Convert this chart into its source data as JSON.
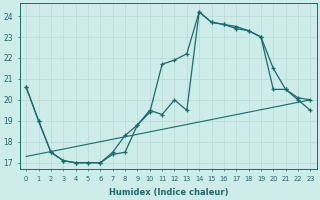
{
  "xlabel": "Humidex (Indice chaleur)",
  "bg_color": "#ceecea",
  "line_color": "#1a6b6b",
  "grid_color": "#b8dbd8",
  "xlim": [
    -0.5,
    23.5
  ],
  "ylim": [
    16.7,
    24.6
  ],
  "yticks": [
    17,
    18,
    19,
    20,
    21,
    22,
    23,
    24
  ],
  "xticks": [
    0,
    1,
    2,
    3,
    4,
    5,
    6,
    7,
    8,
    9,
    10,
    11,
    12,
    13,
    14,
    15,
    16,
    17,
    18,
    19,
    20,
    21,
    22,
    23
  ],
  "line1_x": [
    0,
    1,
    2,
    3,
    4,
    5,
    6,
    7,
    8,
    9,
    10,
    11,
    12,
    13,
    14,
    15,
    16,
    17,
    18,
    19,
    20,
    21,
    22,
    23
  ],
  "line1_y": [
    20.6,
    19.0,
    17.5,
    17.1,
    17.0,
    17.0,
    17.0,
    17.4,
    17.5,
    18.8,
    19.4,
    21.7,
    21.9,
    22.2,
    24.2,
    23.7,
    23.6,
    23.5,
    23.3,
    23.0,
    21.5,
    20.5,
    20.1,
    20.0
  ],
  "line2_x": [
    0,
    1,
    2,
    3,
    4,
    5,
    6,
    7,
    8,
    9,
    10,
    11,
    12,
    13,
    14,
    15,
    16,
    17,
    18,
    19,
    20,
    21,
    22,
    23
  ],
  "line2_y": [
    20.6,
    19.0,
    17.5,
    17.1,
    17.0,
    17.0,
    17.0,
    17.5,
    18.3,
    18.8,
    19.5,
    19.3,
    20.0,
    19.5,
    24.2,
    23.7,
    23.6,
    23.4,
    23.3,
    23.0,
    20.5,
    20.5,
    20.0,
    19.5
  ],
  "line3_x": [
    0,
    23
  ],
  "line3_y": [
    17.3,
    20.0
  ]
}
